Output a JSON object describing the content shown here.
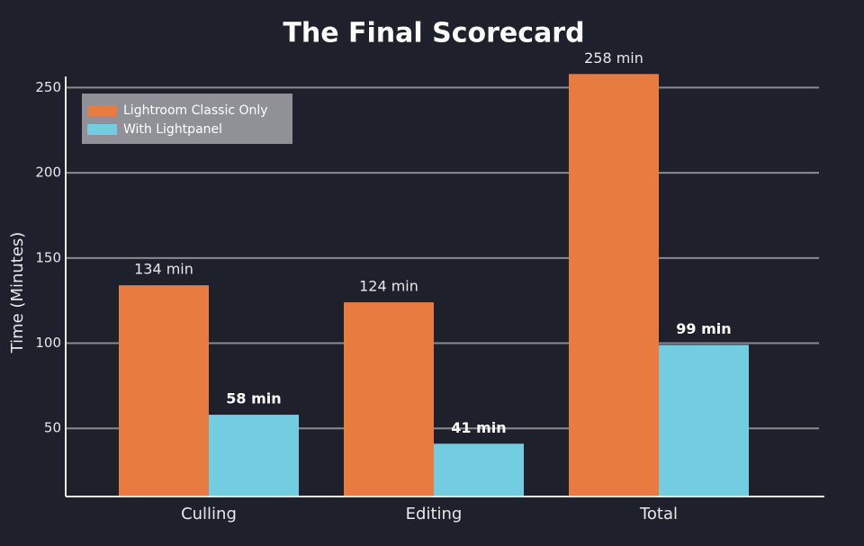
{
  "chart_data": {
    "type": "bar",
    "title": "The Final Scorecard",
    "y_label": "Time (Minutes)",
    "categories": [
      "Culling",
      "Editing",
      "Total"
    ],
    "series": [
      {
        "name": "Lightroom Classic Only",
        "color": "#e87c40",
        "values": [
          134,
          124,
          258
        ],
        "value_labels": [
          "134 min",
          "124 min",
          "258 min"
        ]
      },
      {
        "name": "With Lightpanel",
        "color": "#72cde0",
        "values": [
          58,
          41,
          99
        ],
        "value_labels": [
          "58 min",
          "41 min",
          "99 min"
        ]
      }
    ],
    "ylim": [
      10,
      265
    ],
    "yticks": [
      50,
      100,
      150,
      200,
      250
    ],
    "grid": true,
    "legend": "upper left"
  }
}
